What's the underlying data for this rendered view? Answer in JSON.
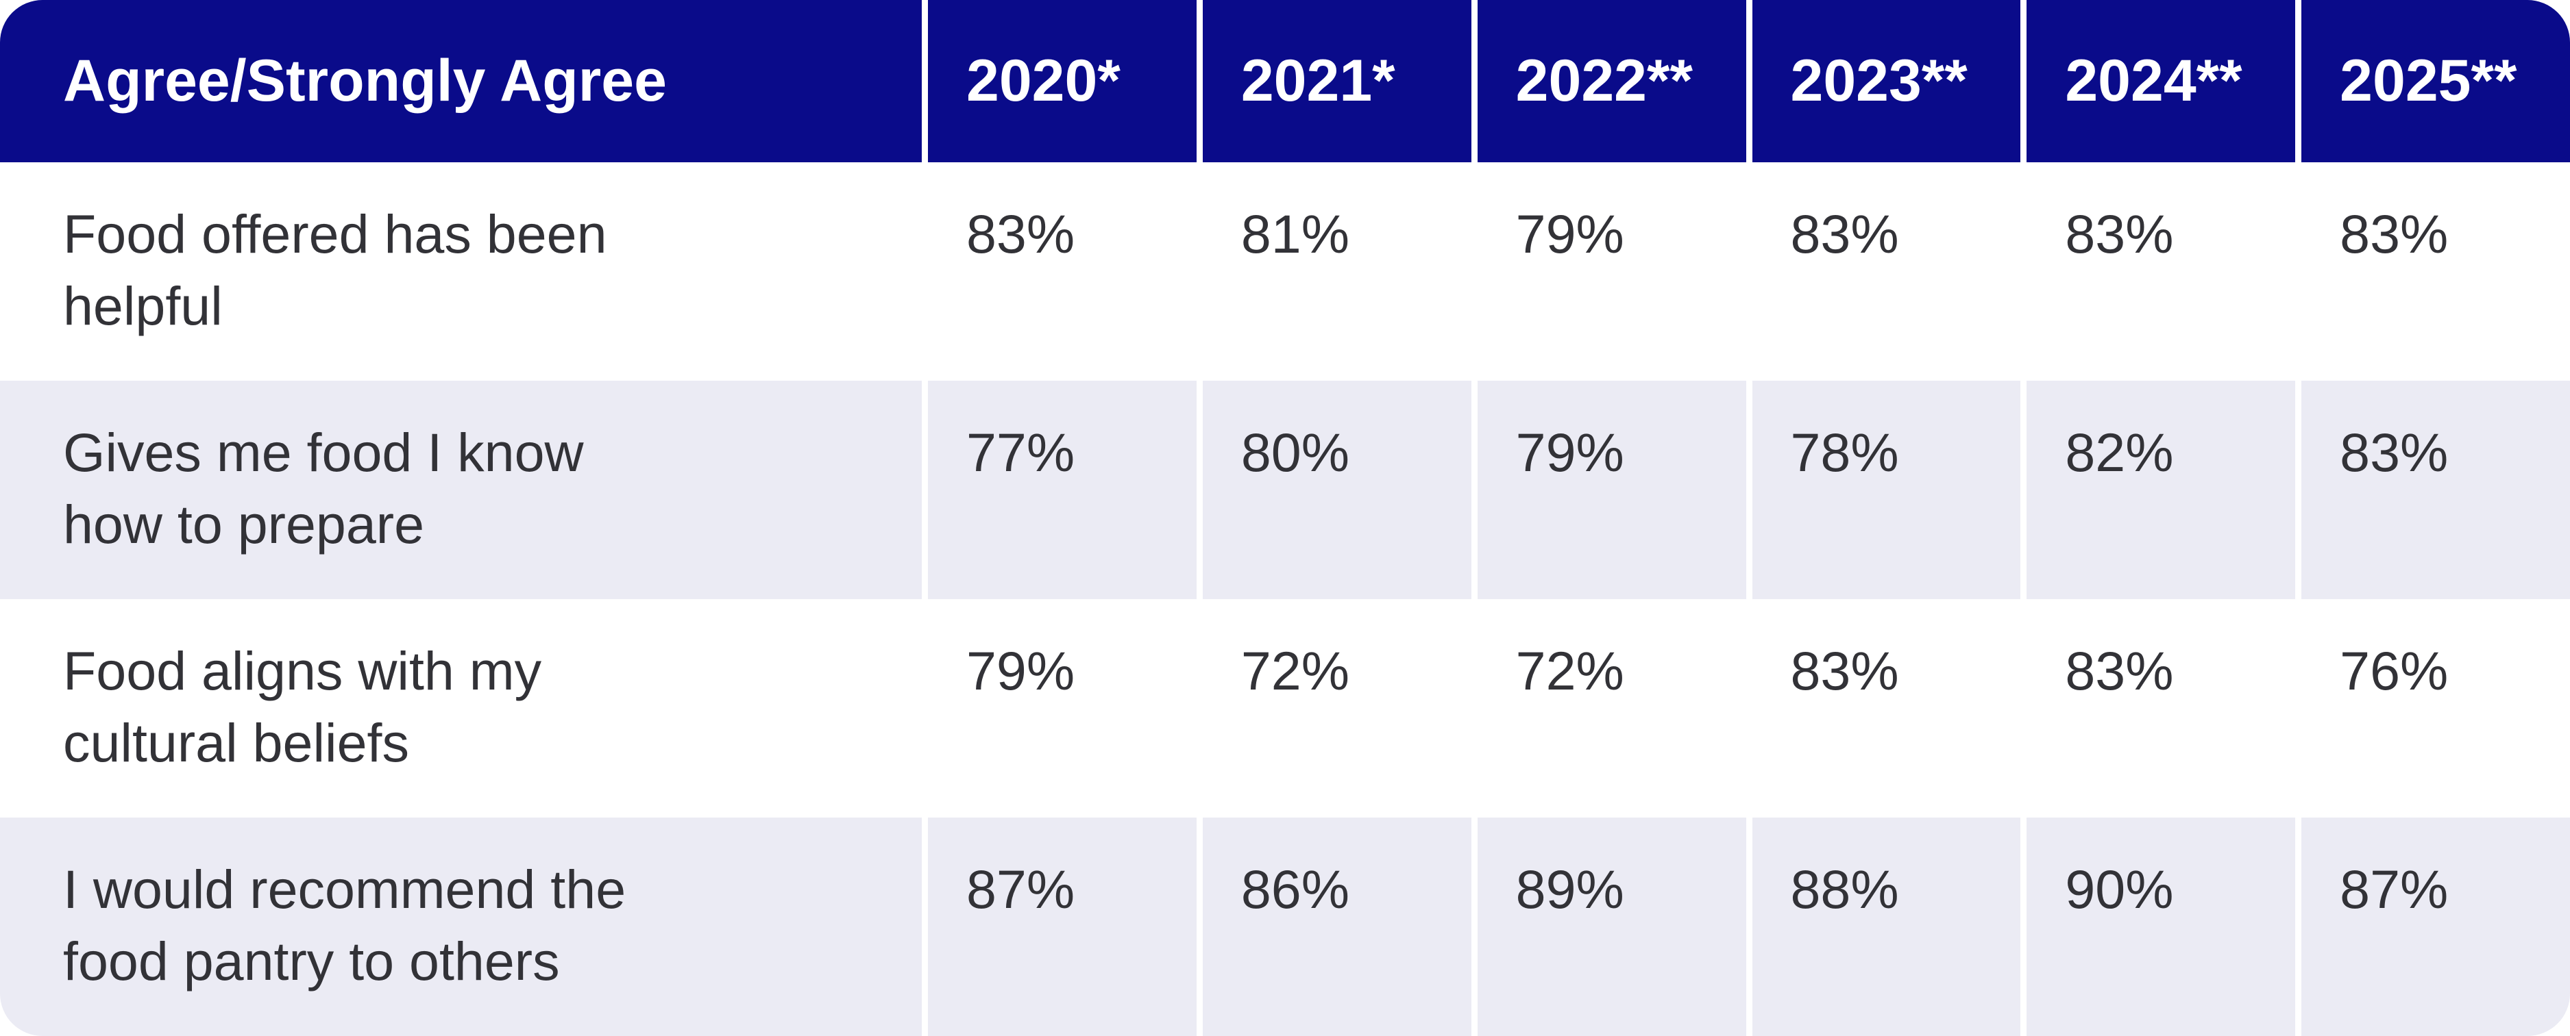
{
  "table": {
    "header": {
      "label": "Agree/Strongly Agree",
      "years": [
        "2020*",
        "2021*",
        "2022**",
        "2023**",
        "2024**",
        "2025**"
      ]
    },
    "rows": [
      {
        "label_lines": [
          "Food offered has been",
          "helpful"
        ],
        "values": [
          "83%",
          "81%",
          "79%",
          "83%",
          "83%",
          "83%"
        ]
      },
      {
        "label_lines": [
          "Gives me food I know",
          "how to prepare"
        ],
        "values": [
          "77%",
          "80%",
          "79%",
          "78%",
          "82%",
          "83%"
        ]
      },
      {
        "label_lines": [
          "Food aligns with my",
          "cultural beliefs"
        ],
        "values": [
          "79%",
          "72%",
          "72%",
          "83%",
          "83%",
          "76%"
        ]
      },
      {
        "label_lines": [
          "I would recommend the",
          "food pantry to others"
        ],
        "values": [
          "87%",
          "86%",
          "89%",
          "88%",
          "90%",
          "87%"
        ]
      }
    ]
  },
  "colors": {
    "header_bg": "#0A0B8A",
    "stripe_bg": "#EBEBF4",
    "grid_line": "#FFFFFF",
    "body_text": "#323237",
    "header_text": "#FFFFFF"
  },
  "chart_data": {
    "type": "table",
    "title": "Agree/Strongly Agree",
    "columns": [
      "2020*",
      "2021*",
      "2022**",
      "2023**",
      "2024**",
      "2025**"
    ],
    "rows": [
      {
        "label": "Food offered has been helpful",
        "values_percent": [
          83,
          81,
          79,
          83,
          83,
          83
        ]
      },
      {
        "label": "Gives me food I know how to prepare",
        "values_percent": [
          77,
          80,
          79,
          78,
          82,
          83
        ]
      },
      {
        "label": "Food aligns with my cultural beliefs",
        "values_percent": [
          79,
          72,
          72,
          83,
          83,
          76
        ]
      },
      {
        "label": "I would recommend the food pantry to others",
        "values_percent": [
          87,
          86,
          89,
          88,
          90,
          87
        ]
      }
    ],
    "layout": {
      "header_style": "navy background, white bold text",
      "row_striping": [
        "white",
        "lavender",
        "white",
        "lavender"
      ],
      "grid": "white vertical separators between columns, rounded outer corners"
    }
  }
}
